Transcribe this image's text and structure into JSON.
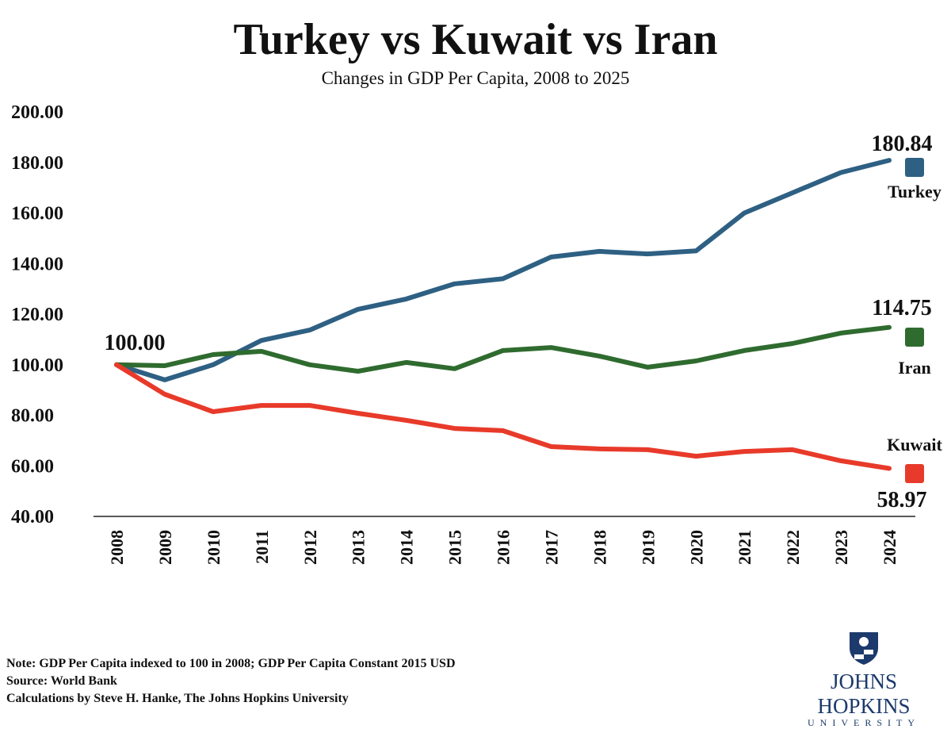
{
  "chart_data": {
    "type": "line",
    "title": "Turkey vs Kuwait vs Iran",
    "subtitle": "Changes in GDP Per Capita, 2008 to 2025",
    "xlabel": "",
    "ylabel": "",
    "x": [
      "2008",
      "2009",
      "2010",
      "2011",
      "2012",
      "2013",
      "2014",
      "2015",
      "2016",
      "2017",
      "2018",
      "2019",
      "2020",
      "2021",
      "2022",
      "2023",
      "2024"
    ],
    "ylim": [
      40,
      200
    ],
    "yticks": [
      "40.00",
      "60.00",
      "80.00",
      "100.00",
      "120.00",
      "140.00",
      "160.00",
      "180.00",
      "200.00"
    ],
    "grid": false,
    "legend": "right",
    "start_label": "100.00",
    "series": [
      {
        "name": "Turkey",
        "color": "#2e6083",
        "end_label": "180.84",
        "values": [
          100,
          94,
          100,
          109.6,
          113.7,
          121.9,
          126,
          132,
          134,
          142.6,
          144.8,
          143.8,
          145,
          160,
          168,
          176,
          180.84
        ]
      },
      {
        "name": "Iran",
        "color": "#2f6b2f",
        "end_label": "114.75",
        "values": [
          100,
          99.6,
          104,
          105.3,
          100,
          97.4,
          100.9,
          98.4,
          105.6,
          106.8,
          103.4,
          99,
          101.5,
          105.6,
          108.4,
          112.5,
          114.75
        ]
      },
      {
        "name": "Kuwait",
        "color": "#e83a2a",
        "end_label": "58.97",
        "values": [
          100,
          88.3,
          81.4,
          83.9,
          83.9,
          80.8,
          78,
          74.8,
          73.9,
          67.6,
          66.7,
          66.4,
          63.8,
          65.7,
          66.4,
          62,
          58.97
        ]
      }
    ]
  },
  "notes": {
    "note": "Note: GDP Per Capita indexed to 100 in 2008; GDP Per Capita Constant 2015 USD",
    "source": "Source: World Bank",
    "credit": "Calculations by Steve H. Hanke, The Johns Hopkins University"
  },
  "logo": {
    "name": "JOHNS HOPKINS",
    "sub": "UNIVERSITY"
  }
}
